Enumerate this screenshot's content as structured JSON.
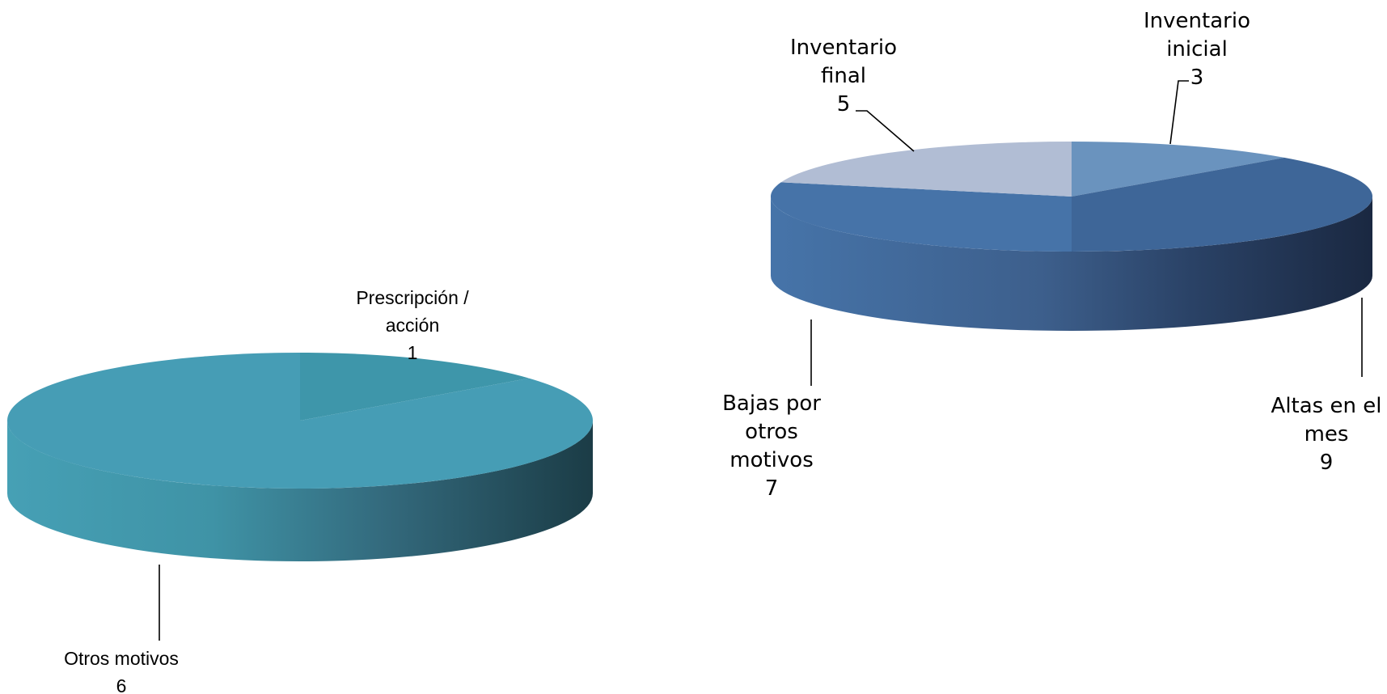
{
  "chart_data": [
    {
      "type": "pie",
      "style": "3d",
      "title": "",
      "categories": [
        "Prescripción / acción",
        "Otros motivos"
      ],
      "label_lines": [
        [
          "Prescripción /",
          "acción"
        ],
        [
          "Otros motivos"
        ]
      ],
      "values": [
        1,
        6
      ],
      "colors": [
        "#3e96aa",
        "#469db5"
      ],
      "legend": "none"
    },
    {
      "type": "pie",
      "style": "3d",
      "title": "",
      "categories": [
        "Inventario inicial",
        "Altas en el mes",
        "Bajas por otros motivos",
        "Inventario final"
      ],
      "label_lines": [
        [
          "Inventario",
          "inicial"
        ],
        [
          "Altas en el",
          "mes"
        ],
        [
          "Bajas por",
          "otros",
          "motivos"
        ],
        [
          "Inventario",
          "final"
        ]
      ],
      "values": [
        3,
        9,
        7,
        5
      ],
      "colors": [
        "#6a93be",
        "#3e6698",
        "#4673a8",
        "#b1bdd4"
      ],
      "legend": "none"
    }
  ]
}
